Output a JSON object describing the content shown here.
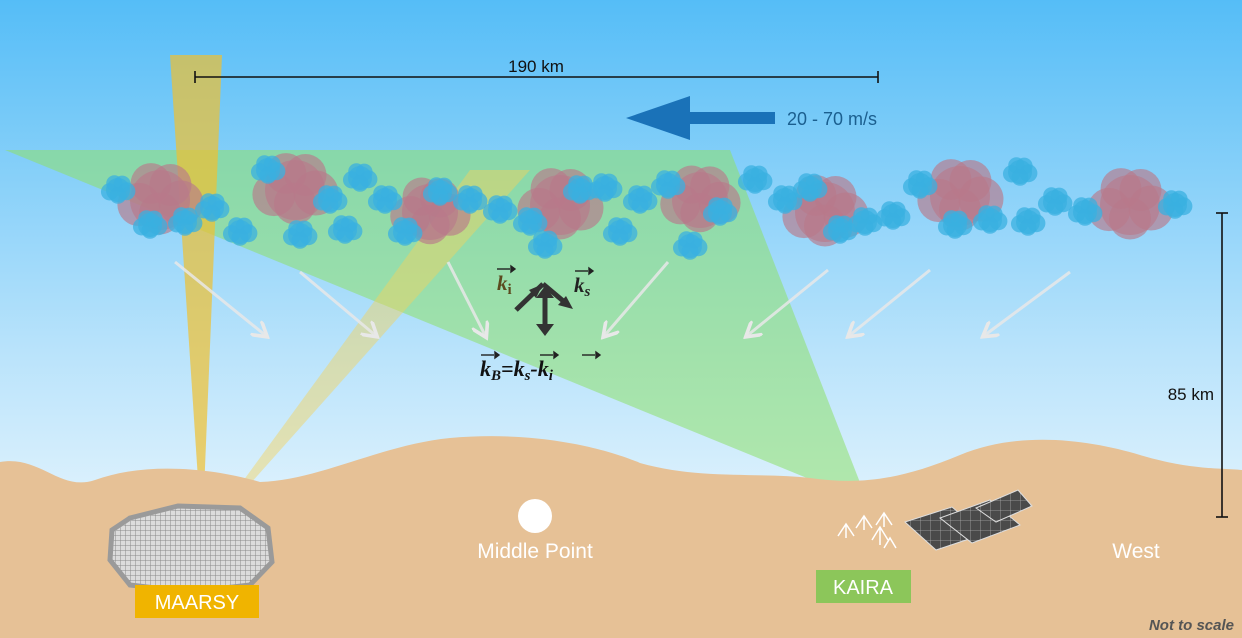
{
  "scale_bar": {
    "label": "190 km"
  },
  "wind": {
    "label": "20 - 70 m/s"
  },
  "altitude": {
    "label": "85 km"
  },
  "vectors": {
    "incident": {
      "symbol": "k",
      "subscript": "i"
    },
    "scattered": {
      "symbol": "k",
      "subscript": "s"
    },
    "bragg": {
      "k1": "k",
      "sub1": "B",
      "eq": "=",
      "k2": "k",
      "sub2": "s",
      "minus": "-",
      "k3": "k",
      "sub3": "i"
    }
  },
  "sites": {
    "maarsy": {
      "label": "MAARSY"
    },
    "middle": {
      "label": "Middle Point"
    },
    "kaira": {
      "label": "KAIRA"
    },
    "west": {
      "label": "West"
    }
  },
  "footnote": "Not to scale",
  "colors": {
    "sky_top": "#5bc0f8",
    "sky_bottom": "#ffffff",
    "ground": "#e6c196",
    "maarsy_beam": "#f0c030",
    "kaira_beam": "#8ee06a",
    "cloud_pink": "#b97a8a",
    "cloud_blue": "#3ab0e0",
    "wind_arrow": "#1a72b8",
    "maarsy_tag": "#f0b400",
    "kaira_tag": "#8cc65a"
  }
}
